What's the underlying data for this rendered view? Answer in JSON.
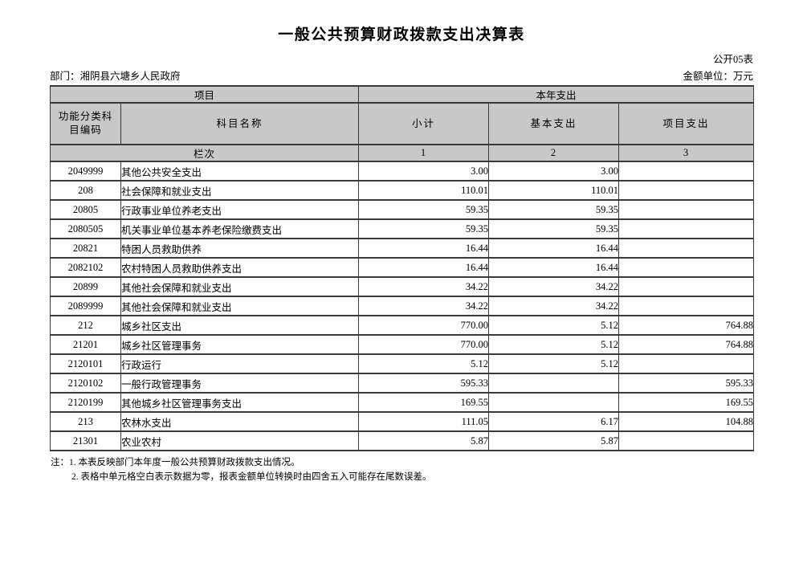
{
  "page": {
    "title": "一般公共预算财政拨款支出决算表",
    "table_code": "公开05表",
    "department": "部门：湘阴县六塘乡人民政府",
    "unit": "金额单位：万元"
  },
  "table": {
    "header": {
      "group_left": "项目",
      "group_right": "本年支出",
      "col_code": "功能分类科目编码",
      "col_name": "科目名称",
      "col_subtotal": "小计",
      "col_basic": "基本支出",
      "col_project": "项目支出",
      "lane_label": "栏次",
      "lane_numbers": [
        "1",
        "2",
        "3"
      ]
    },
    "rows": [
      {
        "code": "2049999",
        "name": "其他公共安全支出",
        "subtotal": "3.00",
        "basic": "3.00",
        "project": ""
      },
      {
        "code": "208",
        "name": "社会保障和就业支出",
        "subtotal": "110.01",
        "basic": "110.01",
        "project": ""
      },
      {
        "code": "20805",
        "name": "行政事业单位养老支出",
        "subtotal": "59.35",
        "basic": "59.35",
        "project": ""
      },
      {
        "code": "2080505",
        "name": "机关事业单位基本养老保险缴费支出",
        "subtotal": "59.35",
        "basic": "59.35",
        "project": ""
      },
      {
        "code": "20821",
        "name": "特困人员救助供养",
        "subtotal": "16.44",
        "basic": "16.44",
        "project": ""
      },
      {
        "code": "2082102",
        "name": "农村特困人员救助供养支出",
        "subtotal": "16.44",
        "basic": "16.44",
        "project": ""
      },
      {
        "code": "20899",
        "name": "其他社会保障和就业支出",
        "subtotal": "34.22",
        "basic": "34.22",
        "project": ""
      },
      {
        "code": "2089999",
        "name": "其他社会保障和就业支出",
        "subtotal": "34.22",
        "basic": "34.22",
        "project": ""
      },
      {
        "code": "212",
        "name": "城乡社区支出",
        "subtotal": "770.00",
        "basic": "5.12",
        "project": "764.88"
      },
      {
        "code": "21201",
        "name": "城乡社区管理事务",
        "subtotal": "770.00",
        "basic": "5.12",
        "project": "764.88"
      },
      {
        "code": "2120101",
        "name": "行政运行",
        "subtotal": "5.12",
        "basic": "5.12",
        "project": ""
      },
      {
        "code": "2120102",
        "name": "一般行政管理事务",
        "subtotal": "595.33",
        "basic": "",
        "project": "595.33"
      },
      {
        "code": "2120199",
        "name": "其他城乡社区管理事务支出",
        "subtotal": "169.55",
        "basic": "",
        "project": "169.55"
      },
      {
        "code": "213",
        "name": "农林水支出",
        "subtotal": "111.05",
        "basic": "6.17",
        "project": "104.88"
      },
      {
        "code": "21301",
        "name": "农业农村",
        "subtotal": "5.87",
        "basic": "5.87",
        "project": ""
      }
    ]
  },
  "notes": {
    "line1": "注：1. 本表反映部门本年度一般公共预算财政拨款支出情况。",
    "line2": "2. 表格中单元格空白表示数据为零，报表金额单位转换时由四舍五入可能存在尾数误差。"
  }
}
